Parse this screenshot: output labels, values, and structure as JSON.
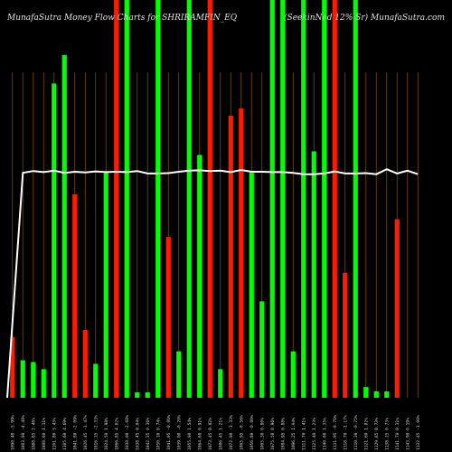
{
  "chart_data": {
    "type": "bar",
    "title_left": "MunafaSutra  Money Flow  Charts for SHRIRAMFIN_EQ",
    "title_right": "(SeekinNed 12% Sr) MunafaSutra.com",
    "ylim": [
      0,
      100
    ],
    "colors": {
      "green": "#00ff00",
      "red": "#ff1a00",
      "line": "#ffffff",
      "grid": "#7a4a10",
      "background": "#000000"
    },
    "categories": [
      "1090.40 -5.99%",
      "1083.00 -4.48%",
      "1088.85 2.46%",
      "1088.60 1.11%",
      "1101.80 5.43%",
      "1105.60 4.69%",
      "1041.80 -2.09%",
      "1026.45 -1.47%",
      "1016.15 -2.33%",
      "1024.50 1.98%",
      "1066.85 4.02%",
      "1038.00 -2.68%",
      "1038.45 0.04%",
      "1042.35 0.36%",
      "1050.10 0.74%",
      "1041.05 -0.86%",
      "1039.00 -0.20%",
      "1055.00 1.54%",
      "1064.60 0.91%",
      "1073.45 0.82%",
      "1086.45 1.21%",
      "1072.00 -1.33%",
      "1065.95 -0.56%",
      "1056.80 -0.86%",
      "1065.30 0.80%",
      "1075.50 0.96%",
      "1084.95 0.88%",
      "1096.25 1.04%",
      "1111.70 1.41%",
      "1125.40 1.23%",
      "1140.60 1.35%",
      "1131.95 -0.76%",
      "1118.70 -1.17%",
      "1110.30 -0.75%",
      "1121.60 1.02%",
      "1129.85 0.73%",
      "1138.15 0.73%",
      "1141.70 0.31%",
      "1143.90 0.19%",
      "1132.45 -1.00%"
    ],
    "values": [
      17,
      10.5,
      10,
      8,
      88,
      96,
      57,
      19,
      9.5,
      63,
      100,
      100,
      1.5,
      1.5,
      100,
      45,
      13,
      100,
      68,
      100,
      8,
      79,
      81,
      63,
      27,
      100,
      100,
      13,
      100,
      69,
      100,
      100,
      35,
      100,
      3,
      1.8,
      1.8,
      50,
      0,
      0
    ],
    "directions": [
      "red",
      "green",
      "green",
      "green",
      "green",
      "green",
      "red",
      "red",
      "green",
      "green",
      "red",
      "green",
      "green",
      "green",
      "green",
      "red",
      "green",
      "green",
      "green",
      "red",
      "green",
      "red",
      "red",
      "green",
      "green",
      "green",
      "green",
      "green",
      "green",
      "green",
      "green",
      "red",
      "red",
      "green",
      "green",
      "green",
      "green",
      "red",
      "green",
      "green"
    ],
    "line_values": [
      0,
      63,
      63.5,
      63.2,
      63.6,
      63,
      63.3,
      63.1,
      63.4,
      63.2,
      63.3,
      63.2,
      63.5,
      62.8,
      62.8,
      62.9,
      63.3,
      63.6,
      63.7,
      63.5,
      63.6,
      63.2,
      63.8,
      63.3,
      63.3,
      63.2,
      63.2,
      63,
      62.6,
      62.6,
      62.8,
      63.4,
      62.8,
      62.8,
      62.9,
      62.6,
      64,
      62.8,
      63.6,
      62.6
    ]
  }
}
